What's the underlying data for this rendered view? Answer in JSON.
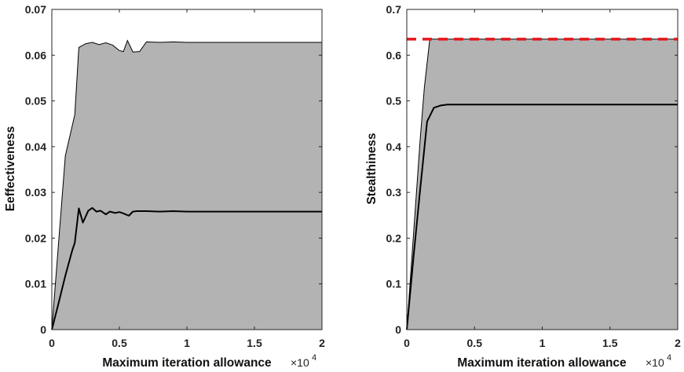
{
  "chart_data": [
    {
      "type": "area",
      "title": "",
      "xlabel": "Maximum iteration allowance",
      "ylabel": "Eeffectiveness",
      "x_multiplier_label": "×10",
      "x_multiplier_exp": "4",
      "xlim": [
        0,
        2
      ],
      "ylim": [
        0,
        0.07
      ],
      "xticks": [
        0,
        0.5,
        1,
        1.5,
        2
      ],
      "xtick_labels": [
        "0",
        "0.5",
        "1",
        "1.5",
        "2"
      ],
      "yticks": [
        0,
        0.01,
        0.02,
        0.03,
        0.04,
        0.05,
        0.06,
        0.07
      ],
      "ytick_labels": [
        "0",
        "0.01",
        "0.02",
        "0.03",
        "0.04",
        "0.05",
        "0.06",
        "0.07"
      ],
      "grid": false,
      "colors": {
        "fill": "#b3b3b3",
        "mean_line": "#000000",
        "upper_edge": "#000000"
      },
      "upper_bound": {
        "x": [
          0,
          0.1,
          0.17,
          0.2,
          0.25,
          0.3,
          0.35,
          0.4,
          0.45,
          0.5,
          0.53,
          0.56,
          0.6,
          0.65,
          0.7,
          0.8,
          0.9,
          1.0,
          1.2,
          1.4,
          1.6,
          1.8,
          2.0
        ],
        "y": [
          0,
          0.038,
          0.047,
          0.0617,
          0.0625,
          0.0628,
          0.0623,
          0.0627,
          0.0622,
          0.061,
          0.0608,
          0.0632,
          0.0607,
          0.0608,
          0.0629,
          0.0628,
          0.0629,
          0.0628,
          0.0628,
          0.0628,
          0.0628,
          0.0628,
          0.0628
        ]
      },
      "mean": {
        "x": [
          0,
          0.05,
          0.1,
          0.15,
          0.17,
          0.2,
          0.23,
          0.27,
          0.3,
          0.33,
          0.36,
          0.4,
          0.43,
          0.47,
          0.5,
          0.53,
          0.57,
          0.6,
          0.63,
          0.7,
          0.8,
          0.9,
          1.0,
          1.1,
          1.2,
          1.3,
          1.4,
          1.5,
          1.6,
          1.7,
          1.8,
          1.9,
          2.0
        ],
        "y": [
          0,
          0.0058,
          0.0118,
          0.0172,
          0.019,
          0.0265,
          0.0234,
          0.026,
          0.0266,
          0.0258,
          0.026,
          0.0252,
          0.0258,
          0.0255,
          0.0257,
          0.0254,
          0.0249,
          0.0258,
          0.0259,
          0.0259,
          0.0258,
          0.0259,
          0.0258,
          0.0258,
          0.0258,
          0.0258,
          0.0258,
          0.0258,
          0.0258,
          0.0258,
          0.0258,
          0.0258,
          0.0258
        ]
      }
    },
    {
      "type": "area",
      "title": "",
      "xlabel": "Maximum iteration allowance",
      "ylabel": "Stealthiness",
      "x_multiplier_label": "×10",
      "x_multiplier_exp": "4",
      "xlim": [
        0,
        2
      ],
      "ylim": [
        0,
        0.7
      ],
      "xticks": [
        0,
        0.5,
        1,
        1.5,
        2
      ],
      "xtick_labels": [
        "0",
        "0.5",
        "1",
        "1.5",
        "2"
      ],
      "yticks": [
        0,
        0.1,
        0.2,
        0.3,
        0.4,
        0.5,
        0.6,
        0.7
      ],
      "ytick_labels": [
        "0",
        "0.1",
        "0.2",
        "0.3",
        "0.4",
        "0.5",
        "0.6",
        "0.7"
      ],
      "grid": false,
      "colors": {
        "fill": "#b3b3b3",
        "mean_line": "#000000",
        "upper_edge": "#000000",
        "reference_line": "#e8161b"
      },
      "upper_bound": {
        "x": [
          0,
          0.05,
          0.1,
          0.13,
          0.17,
          0.2,
          0.3,
          0.5,
          1.0,
          1.5,
          2.0
        ],
        "y": [
          0,
          0.21,
          0.42,
          0.53,
          0.635,
          0.635,
          0.635,
          0.635,
          0.635,
          0.635,
          0.635
        ]
      },
      "mean": {
        "x": [
          0,
          0.05,
          0.1,
          0.15,
          0.2,
          0.25,
          0.3,
          0.4,
          0.5,
          0.7,
          1.0,
          1.5,
          2.0
        ],
        "y": [
          0,
          0.16,
          0.31,
          0.455,
          0.485,
          0.49,
          0.492,
          0.492,
          0.492,
          0.492,
          0.492,
          0.492,
          0.492
        ]
      },
      "reference_line": {
        "y": 0.635,
        "style": "dashed"
      }
    }
  ]
}
